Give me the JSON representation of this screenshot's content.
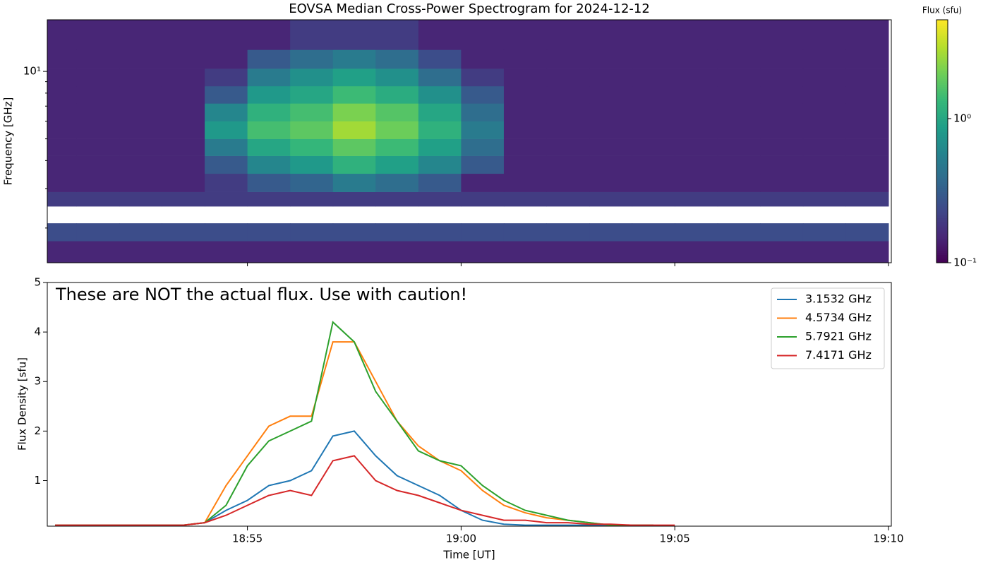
{
  "chart_data": [
    {
      "type": "heatmap",
      "title": "EOVSA Median Cross-Power Spectrogram for 2024-12-12",
      "y_label": "Frequency [GHz]",
      "colorbar_label": "Flux (sfu)",
      "xlim": [
        "18:50:19",
        "19:10:04"
      ],
      "ylim": [
        1.4,
        17
      ],
      "log_y": true,
      "yticks": [
        {
          "value": 10,
          "label": "10¹"
        }
      ],
      "clim": [
        0.1,
        4.85
      ],
      "log_color": true,
      "colormap": "viridis",
      "cticks": [
        {
          "value": 1,
          "label": "10⁰"
        },
        {
          "value": 0.1,
          "label": "10⁻¹"
        }
      ],
      "x_bins": [
        "18:50",
        "18:51",
        "18:52",
        "18:53",
        "18:54",
        "18:55",
        "18:56",
        "18:57",
        "18:58",
        "18:59",
        "19:00",
        "19:01",
        "19:02",
        "19:03",
        "19:04",
        "19:05",
        "19:06",
        "19:07",
        "19:08",
        "19:09",
        "19:10"
      ],
      "y_bins": [
        1.4,
        1.75,
        2.1,
        2.5,
        2.9,
        3.5,
        4.2,
        5.0,
        6.0,
        7.2,
        8.6,
        10.3,
        12.5,
        17
      ],
      "values": [
        [
          0.15,
          0.15,
          0.15,
          0.15,
          0.15,
          0.15,
          0.15,
          0.15,
          0.15,
          0.15,
          0.15,
          0.15,
          0.15,
          0.15,
          0.15,
          0.15,
          0.15,
          0.15,
          0.15,
          0.15
        ],
        [
          0.25,
          0.25,
          0.25,
          0.25,
          0.25,
          0.25,
          0.25,
          0.25,
          0.25,
          0.25,
          0.25,
          0.25,
          0.25,
          0.25,
          0.25,
          0.25,
          0.25,
          0.25,
          0.25,
          0.25
        ],
        [
          null,
          null,
          null,
          null,
          null,
          null,
          null,
          null,
          null,
          null,
          null,
          null,
          null,
          null,
          null,
          null,
          null,
          null,
          null,
          null
        ],
        [
          0.2,
          0.2,
          0.2,
          0.2,
          0.2,
          0.2,
          0.2,
          0.2,
          0.2,
          0.2,
          0.2,
          0.2,
          0.2,
          0.2,
          0.2,
          0.2,
          0.2,
          0.2,
          0.2,
          0.2
        ],
        [
          0.15,
          0.15,
          0.15,
          0.15,
          0.2,
          0.3,
          0.35,
          0.5,
          0.4,
          0.3,
          0.15,
          0.15,
          0.15,
          0.15,
          0.15,
          0.15,
          0.15,
          0.15,
          0.15,
          0.15
        ],
        [
          0.15,
          0.15,
          0.15,
          0.15,
          0.3,
          0.6,
          0.8,
          1.2,
          0.9,
          0.6,
          0.3,
          0.15,
          0.15,
          0.15,
          0.15,
          0.15,
          0.15,
          0.15,
          0.15,
          0.15
        ],
        [
          0.15,
          0.15,
          0.15,
          0.15,
          0.5,
          1.0,
          1.3,
          1.8,
          1.4,
          0.9,
          0.4,
          0.15,
          0.15,
          0.15,
          0.15,
          0.15,
          0.15,
          0.15,
          0.15,
          0.15
        ],
        [
          0.15,
          0.15,
          0.15,
          0.15,
          0.8,
          1.5,
          1.8,
          2.8,
          2.0,
          1.2,
          0.5,
          0.15,
          0.15,
          0.15,
          0.15,
          0.15,
          0.15,
          0.15,
          0.15,
          0.15
        ],
        [
          0.15,
          0.15,
          0.15,
          0.15,
          0.6,
          1.2,
          1.5,
          2.2,
          1.7,
          1.0,
          0.4,
          0.15,
          0.15,
          0.15,
          0.15,
          0.15,
          0.15,
          0.15,
          0.15,
          0.15
        ],
        [
          0.15,
          0.15,
          0.15,
          0.15,
          0.3,
          0.8,
          1.0,
          1.4,
          1.1,
          0.7,
          0.3,
          0.15,
          0.15,
          0.15,
          0.15,
          0.15,
          0.15,
          0.15,
          0.15,
          0.15
        ],
        [
          0.15,
          0.15,
          0.15,
          0.15,
          0.2,
          0.5,
          0.7,
          0.9,
          0.7,
          0.4,
          0.2,
          0.15,
          0.15,
          0.15,
          0.15,
          0.15,
          0.15,
          0.15,
          0.15,
          0.15
        ],
        [
          0.15,
          0.15,
          0.15,
          0.15,
          0.15,
          0.3,
          0.4,
          0.5,
          0.4,
          0.25,
          0.15,
          0.15,
          0.15,
          0.15,
          0.15,
          0.15,
          0.15,
          0.15,
          0.15,
          0.15
        ],
        [
          0.15,
          0.15,
          0.15,
          0.15,
          0.15,
          0.15,
          0.2,
          0.2,
          0.2,
          0.15,
          0.15,
          0.15,
          0.15,
          0.15,
          0.15,
          0.15,
          0.15,
          0.15,
          0.15,
          0.15
        ]
      ]
    },
    {
      "type": "line",
      "x_label": "Time [UT]",
      "y_label": "Flux Density [sfu]",
      "annotation": "These are NOT the actual flux. Use with caution!",
      "xlim": [
        "18:50:19",
        "19:10:04"
      ],
      "xticks": [
        "18:55",
        "19:00",
        "19:05",
        "19:10"
      ],
      "ylim": [
        0.08,
        5
      ],
      "yticks": [
        1,
        2,
        3,
        4,
        5
      ],
      "legend": "upper right",
      "x": [
        "18:50:30",
        "18:51:00",
        "18:51:30",
        "18:52:00",
        "18:52:30",
        "18:53:00",
        "18:53:30",
        "18:54:00",
        "18:54:30",
        "18:55:00",
        "18:55:30",
        "18:56:00",
        "18:56:30",
        "18:57:00",
        "18:57:30",
        "18:58:00",
        "18:58:30",
        "18:59:00",
        "18:59:30",
        "19:00:00",
        "19:00:30",
        "19:01:00",
        "19:01:30",
        "19:02:00",
        "19:02:30",
        "19:03:00",
        "19:03:30",
        "19:04:00",
        "19:04:30",
        "19:05:00"
      ],
      "series": [
        {
          "name": "3.1532 GHz",
          "color": "#1f77b4",
          "values": [
            0.1,
            0.1,
            0.1,
            0.1,
            0.1,
            0.1,
            0.1,
            0.15,
            0.4,
            0.6,
            0.9,
            1.0,
            1.2,
            1.9,
            2.0,
            1.5,
            1.1,
            0.9,
            0.7,
            0.4,
            0.2,
            0.12,
            0.1,
            0.1,
            0.1,
            0.1,
            0.1,
            0.1,
            0.1,
            null
          ]
        },
        {
          "name": "4.5734 GHz",
          "color": "#ff7f0e",
          "values": [
            0.1,
            0.1,
            0.1,
            0.1,
            0.1,
            0.1,
            0.1,
            0.15,
            0.9,
            1.5,
            2.1,
            2.3,
            2.3,
            3.8,
            3.8,
            3.0,
            2.2,
            1.7,
            1.4,
            1.2,
            0.8,
            0.5,
            0.35,
            0.25,
            0.2,
            0.15,
            0.1,
            0.1,
            0.1,
            null
          ]
        },
        {
          "name": "5.7921 GHz",
          "color": "#2ca02c",
          "values": [
            0.1,
            0.1,
            0.1,
            0.1,
            0.1,
            0.1,
            0.1,
            0.15,
            0.5,
            1.3,
            1.8,
            2.0,
            2.2,
            4.2,
            3.8,
            2.8,
            2.2,
            1.6,
            1.4,
            1.3,
            0.9,
            0.6,
            0.4,
            0.3,
            0.2,
            0.15,
            0.1,
            0.1,
            0.1,
            null
          ]
        },
        {
          "name": "7.4171 GHz",
          "color": "#d62728",
          "values": [
            0.1,
            0.1,
            0.1,
            0.1,
            0.1,
            0.1,
            0.1,
            0.15,
            0.3,
            0.5,
            0.7,
            0.8,
            0.7,
            1.4,
            1.5,
            1.0,
            0.8,
            0.7,
            0.55,
            0.4,
            0.3,
            0.2,
            0.2,
            0.15,
            0.15,
            0.12,
            0.12,
            0.1,
            0.1,
            0.1
          ]
        }
      ]
    }
  ]
}
